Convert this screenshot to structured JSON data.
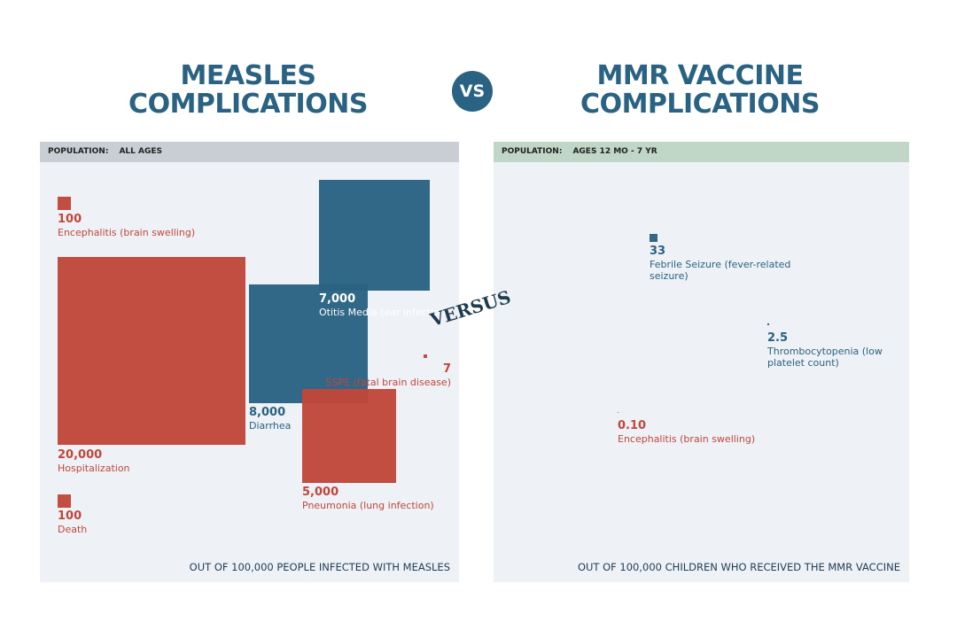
{
  "header": {
    "left_title": [
      "MEASLES",
      "COMPLICATIONS"
    ],
    "vs": "VS",
    "right_title": [
      "MMR VACCINE",
      "COMPLICATIONS"
    ],
    "versus": "VERSUS"
  },
  "panels": [
    {
      "population_label": "POPULATION:",
      "population": "ALL AGES",
      "footer": "OUT OF 100,000 PEOPLE INFECTED WITH MEASLES",
      "items": [
        {
          "value": 100,
          "value_label": "100",
          "label": "Encephalitis (brain swelling)",
          "color": "#c0473b"
        },
        {
          "value": 20000,
          "value_label": "20,000",
          "label": "Hospitalization",
          "color": "#c0473b"
        },
        {
          "value": 8000,
          "value_label": "8,000",
          "label": "Diarrhea",
          "color": "#2a6283"
        },
        {
          "value": 7000,
          "value_label": "7,000",
          "label": "Otitis Media (ear infection)",
          "color": "#2a6283"
        },
        {
          "value": 5000,
          "value_label": "5,000",
          "label": "Pneumonia (lung infection)",
          "color": "#c0473b"
        },
        {
          "value": 7,
          "value_label": "7",
          "label": "SSPE (fatal brain disease)",
          "color": "#c0473b"
        },
        {
          "value": 100,
          "value_label": "100",
          "label": "Death",
          "color": "#c0473b"
        }
      ]
    },
    {
      "population_label": "POPULATION:",
      "population": "AGES 12 MO - 7 YR",
      "footer": "OUT OF 100,000 CHILDREN WHO RECEIVED THE MMR VACCINE",
      "items": [
        {
          "value": 33,
          "value_label": "33",
          "label": "Febrile Seizure (fever-related seizure)",
          "color": "#2a6283"
        },
        {
          "value": 2.5,
          "value_label": "2.5",
          "label": "Thrombocytopenia (low platelet count)",
          "color": "#2a6283"
        },
        {
          "value": 0.1,
          "value_label": "0.10",
          "label": "Encephalitis (brain swelling)",
          "color": "#c0473b"
        }
      ]
    }
  ]
}
